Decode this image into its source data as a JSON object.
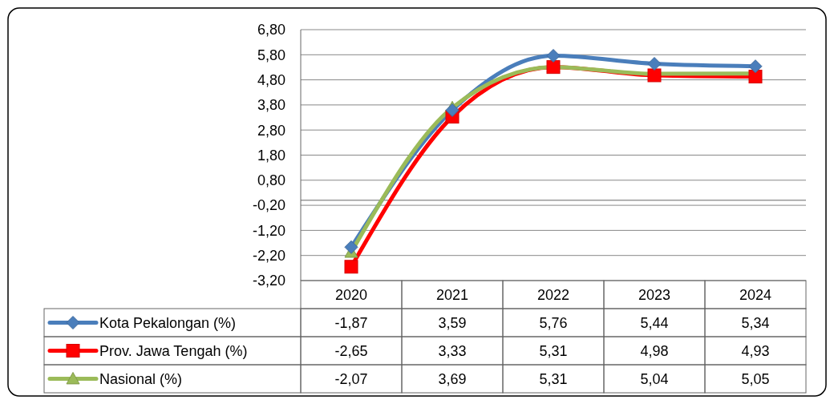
{
  "chart_data": {
    "type": "line",
    "categories": [
      "2020",
      "2021",
      "2022",
      "2023",
      "2024"
    ],
    "series": [
      {
        "name": "Kota Pekalongan (%)",
        "color": "#4a7ebb",
        "marker": "diamond",
        "values": [
          -1.87,
          3.59,
          5.76,
          5.44,
          5.34
        ]
      },
      {
        "name": "Prov. Jawa Tengah (%)",
        "color": "#ff0000",
        "marker": "square",
        "values": [
          -2.65,
          3.33,
          5.31,
          4.98,
          4.93
        ]
      },
      {
        "name": "Nasional (%)",
        "color": "#9bbb59",
        "marker": "triangle",
        "values": [
          -2.07,
          3.69,
          5.31,
          5.04,
          5.05
        ]
      }
    ],
    "value_labels": [
      [
        "-1,87",
        "3,59",
        "5,76",
        "5,44",
        "5,34"
      ],
      [
        "-2,65",
        "3,33",
        "5,31",
        "4,98",
        "4,93"
      ],
      [
        "-2,07",
        "3,69",
        "5,31",
        "5,04",
        "5,05"
      ]
    ],
    "ylim": [
      -3.2,
      6.8
    ],
    "yticks": [
      {
        "value": -3.2,
        "label": "-3,20"
      },
      {
        "value": -2.2,
        "label": "-2,20"
      },
      {
        "value": -1.2,
        "label": "-1,20"
      },
      {
        "value": -0.2,
        "label": "-0,20"
      },
      {
        "value": 0.8,
        "label": "0,80"
      },
      {
        "value": 1.8,
        "label": "1,80"
      },
      {
        "value": 2.8,
        "label": "2,80"
      },
      {
        "value": 3.8,
        "label": "3,80"
      },
      {
        "value": 4.8,
        "label": "4,80"
      },
      {
        "value": 5.8,
        "label": "5,80"
      },
      {
        "value": 6.8,
        "label": "6,80"
      }
    ],
    "grid": "y",
    "legend": "bottom",
    "line_style": "solid"
  }
}
